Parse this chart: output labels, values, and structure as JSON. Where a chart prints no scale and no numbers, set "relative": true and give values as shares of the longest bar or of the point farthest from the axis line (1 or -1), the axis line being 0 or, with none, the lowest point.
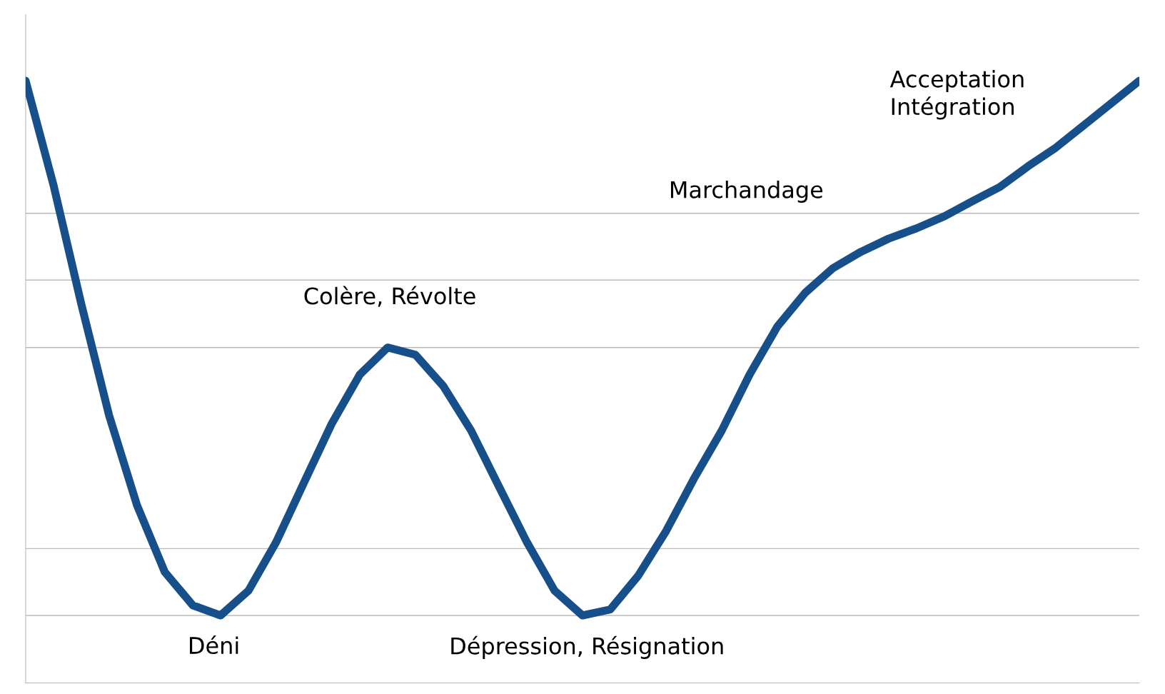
{
  "chart_data": {
    "type": "line",
    "relative": true,
    "grid": "y",
    "marker": "none",
    "line_style": "solid",
    "categories": [
      null,
      null,
      null,
      null,
      null,
      null,
      null,
      null,
      null,
      null,
      null,
      null,
      null,
      null,
      null,
      null,
      null,
      null,
      null,
      null,
      null,
      null,
      null,
      null,
      null,
      null,
      null,
      null,
      null,
      null,
      null,
      null,
      null,
      null,
      null,
      null,
      null,
      null,
      null,
      null,
      null
    ],
    "series": [
      {
        "color": "#174f8a",
        "values": [
          1.0,
          0.827,
          0.629,
          0.444,
          0.295,
          0.184,
          0.129,
          0.112,
          0.153,
          0.234,
          0.333,
          0.431,
          0.512,
          0.557,
          0.545,
          0.493,
          0.419,
          0.326,
          0.234,
          0.153,
          0.112,
          0.122,
          0.178,
          0.252,
          0.339,
          0.419,
          0.512,
          0.592,
          0.648,
          0.689,
          0.716,
          0.738,
          0.755,
          0.775,
          0.8,
          0.824,
          0.858,
          0.889,
          0.926,
          0.963,
          1.0
        ]
      }
    ],
    "annotations": [
      "Déni",
      "Colère, Révolte",
      "Dépression, Résignation",
      "Marchandage",
      "Acceptation\nIntégration"
    ]
  }
}
